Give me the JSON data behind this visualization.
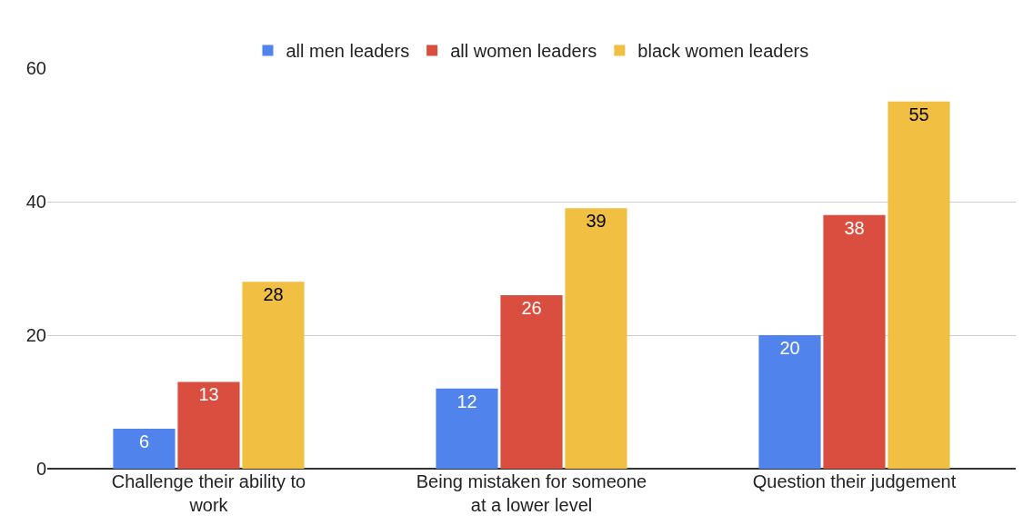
{
  "chart_data": {
    "type": "bar",
    "categories": [
      "Challenge their ability to work",
      "Being mistaken for someone at a lower level",
      "Question their judgement"
    ],
    "series": [
      {
        "name": "all men leaders",
        "color": "#5083ec",
        "values": [
          6,
          12,
          20
        ]
      },
      {
        "name": "all women leaders",
        "color": "#d94e3f",
        "values": [
          13,
          26,
          38
        ]
      },
      {
        "name": "black women leaders",
        "color": "#f1bf42",
        "values": [
          28,
          39,
          55
        ]
      }
    ],
    "ylim": [
      0,
      60
    ],
    "yticks": [
      0,
      20,
      40,
      60
    ],
    "grid": "y",
    "legend": "top",
    "data_labels": true
  }
}
